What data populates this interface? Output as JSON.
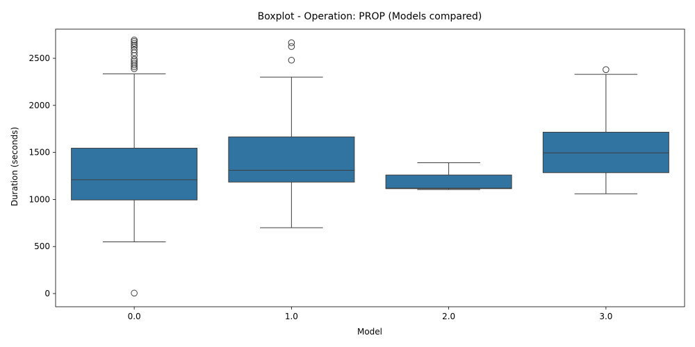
{
  "chart_data": {
    "type": "boxplot",
    "title": "Boxplot - Operation: PROP (Models compared)",
    "xlabel": "Model",
    "ylabel": "Duration (seconds)",
    "categories": [
      "0.0",
      "1.0",
      "2.0",
      "3.0"
    ],
    "ylim": [
      -140,
      2810
    ],
    "yticks": [
      0,
      500,
      1000,
      1500,
      2000,
      2500
    ],
    "box_color": "#3274a1",
    "line_color": "#3d3d3d",
    "grid": false,
    "legend": "none",
    "boxes": [
      {
        "category": "0.0",
        "whisker_low": 550,
        "q1": 995,
        "median": 1210,
        "q3": 1545,
        "whisker_high": 2335,
        "outliers": [
          5,
          2390,
          2410,
          2430,
          2450,
          2470,
          2490,
          2530,
          2560,
          2590,
          2620,
          2640,
          2660,
          2680,
          2695
        ]
      },
      {
        "category": "1.0",
        "whisker_low": 700,
        "q1": 1185,
        "median": 1310,
        "q3": 1665,
        "whisker_high": 2300,
        "outliers": [
          2480,
          2625,
          2665
        ]
      },
      {
        "category": "2.0",
        "whisker_low": 1105,
        "q1": 1115,
        "median": 1120,
        "q3": 1260,
        "whisker_high": 1390,
        "outliers": []
      },
      {
        "category": "3.0",
        "whisker_low": 1060,
        "q1": 1285,
        "median": 1495,
        "q3": 1715,
        "whisker_high": 2330,
        "outliers": [
          2380
        ]
      }
    ]
  }
}
